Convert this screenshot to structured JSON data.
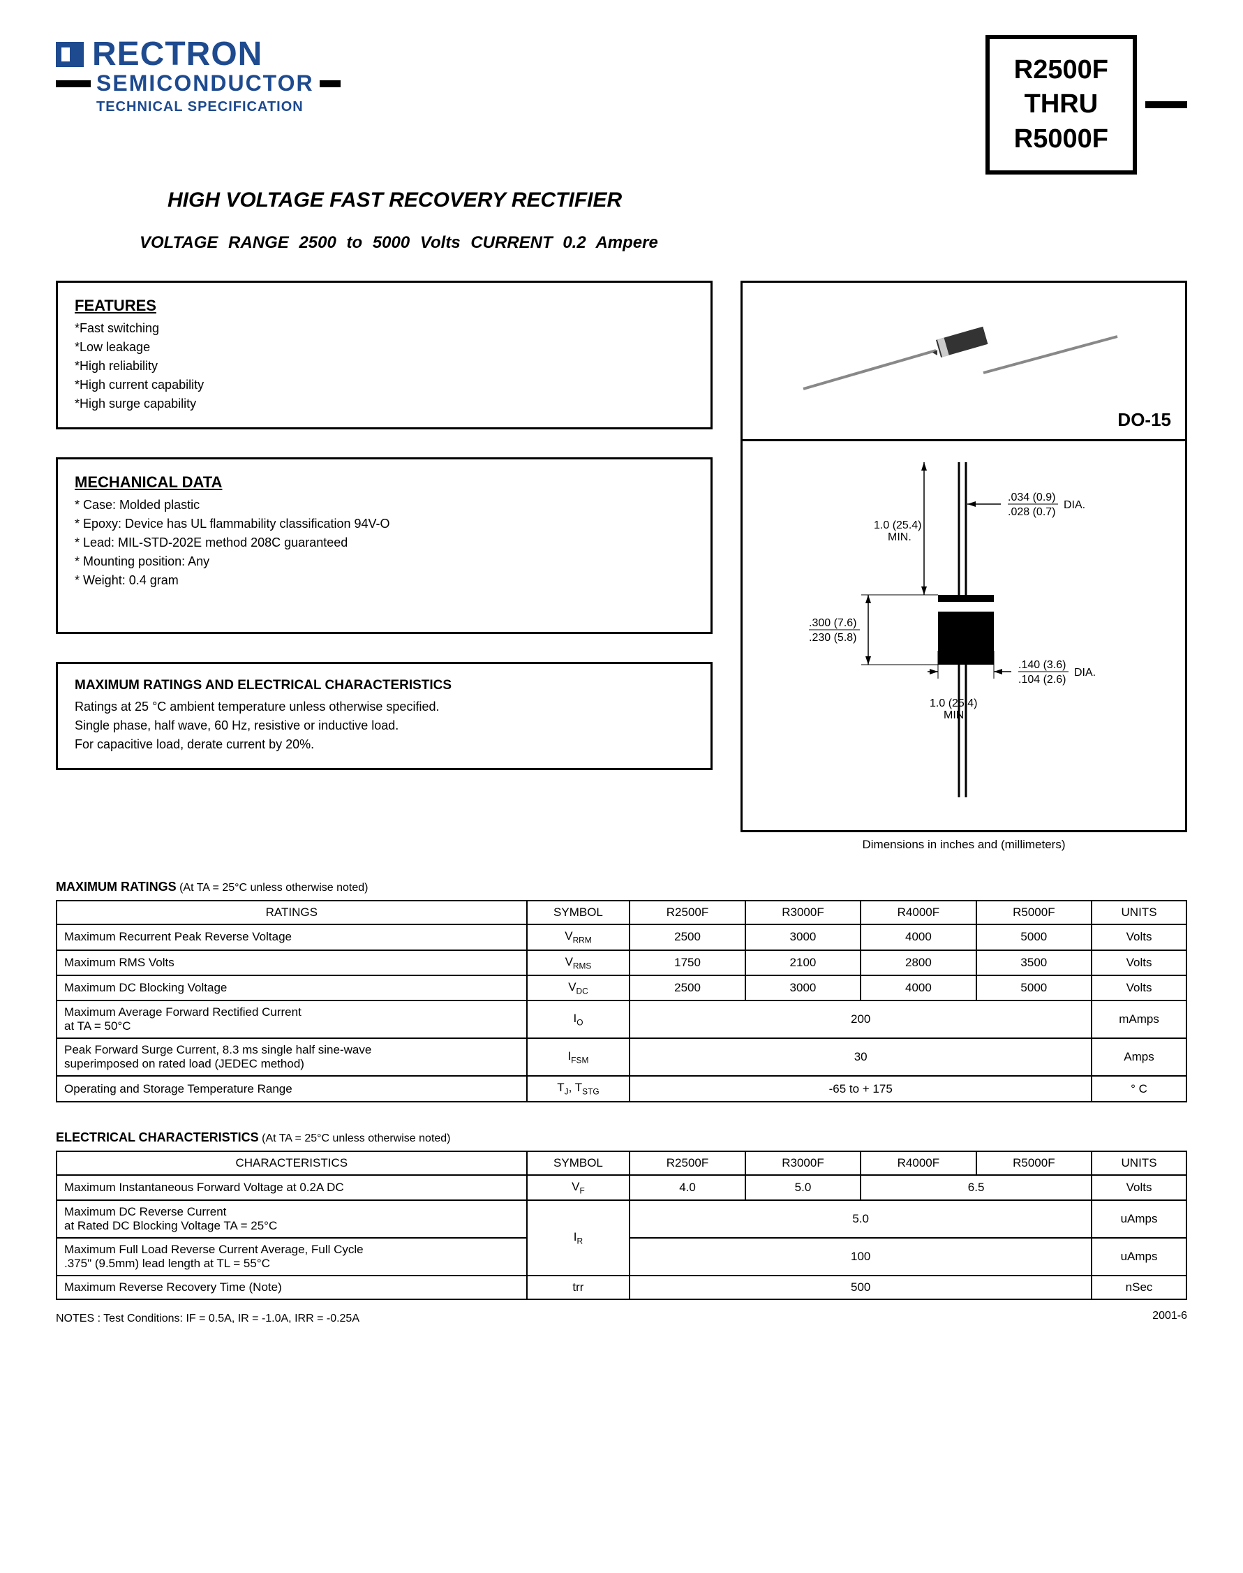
{
  "header": {
    "company": "RECTRON",
    "company_line2": "SEMICONDUCTOR",
    "company_line3": "TECHNICAL SPECIFICATION",
    "part_line1": "R2500F",
    "part_line2": "THRU",
    "part_line3": "R5000F",
    "brand_color": "#1e4a8f"
  },
  "titles": {
    "main": "HIGH VOLTAGE FAST RECOVERY RECTIFIER",
    "sub": "VOLTAGE RANGE  2500 to 5000 Volts    CURRENT 0.2 Ampere"
  },
  "features": {
    "heading": "FEATURES",
    "items": [
      "*Fast switching",
      "*Low leakage",
      "*High reliability",
      "*High current capability",
      "*High surge capability"
    ]
  },
  "mechanical": {
    "heading": "MECHANICAL DATA",
    "items": [
      "* Case: Molded plastic",
      "* Epoxy: Device has UL flammability classification 94V-O",
      "* Lead: MIL-STD-202E method 208C guaranteed",
      "* Mounting position: Any",
      "* Weight: 0.4 gram"
    ]
  },
  "ratings_intro": {
    "heading": "MAXIMUM RATINGS AND ELECTRICAL CHARACTERISTICS",
    "line1": "Ratings at 25 °C ambient temperature unless otherwise specified.",
    "line2": "Single phase, half wave, 60 Hz, resistive or inductive load.",
    "line3": "For capacitive load, derate current by 20%."
  },
  "package": {
    "label": "DO-15",
    "caption": "Dimensions in inches and (millimeters)",
    "dims": {
      "lead_dia": ".034 (0.9)\n.028 (0.7)",
      "lead_dia_label": "DIA.",
      "lead_len": "1.0 (25.4)\nMIN.",
      "body_len": ".300 (7.6)\n.230 (5.8)",
      "body_dia": ".140 (3.6)\n.104 (2.6)",
      "body_dia_label": "DIA."
    }
  },
  "max_ratings": {
    "title": "MAXIMUM RATINGS",
    "title_note": " (At TA = 25°C unless otherwise noted)",
    "columns": [
      "RATINGS",
      "SYMBOL",
      "R2500F",
      "R3000F",
      "R4000F",
      "R5000F",
      "UNITS"
    ],
    "rows": [
      {
        "rating": "Maximum Recurrent Peak Reverse Voltage",
        "symbol": "VRRM",
        "vals": [
          "2500",
          "3000",
          "4000",
          "5000"
        ],
        "units": "Volts",
        "span": false
      },
      {
        "rating": "Maximum RMS Volts",
        "symbol": "VRMS",
        "vals": [
          "1750",
          "2100",
          "2800",
          "3500"
        ],
        "units": "Volts",
        "span": false
      },
      {
        "rating": "Maximum DC Blocking Voltage",
        "symbol": "VDC",
        "vals": [
          "2500",
          "3000",
          "4000",
          "5000"
        ],
        "units": "Volts",
        "span": false
      },
      {
        "rating": "Maximum Average Forward Rectified Current\nat TA = 50°C",
        "symbol": "IO",
        "vals": [
          "200"
        ],
        "units": "mAmps",
        "span": true
      },
      {
        "rating": "Peak Forward Surge Current, 8.3 ms single half sine-wave\nsuperimposed on rated load (JEDEC method)",
        "symbol": "IFSM",
        "vals": [
          "30"
        ],
        "units": "Amps",
        "span": true
      },
      {
        "rating": "Operating and Storage Temperature Range",
        "symbol": "TJ, TSTG",
        "vals": [
          "-65 to + 175"
        ],
        "units": "° C",
        "span": true
      }
    ]
  },
  "elec_char": {
    "title": "ELECTRICAL CHARACTERISTICS",
    "title_note": " (At TA = 25°C unless otherwise noted)",
    "columns": [
      "CHARACTERISTICS",
      "SYMBOL",
      "R2500F",
      "R3000F",
      "R4000F",
      "R5000F",
      "UNITS"
    ],
    "rows": [
      {
        "char": "Maximum Instantaneous Forward Voltage at 0.2A DC",
        "symbol": "VF",
        "vals": [
          "4.0",
          "5.0",
          "6.5",
          ""
        ],
        "span_last2": true,
        "units": "Volts",
        "rowspan": 1
      },
      {
        "char": "Maximum DC Reverse Current\nat Rated DC Blocking Voltage TA = 25°C",
        "symbol": "IR",
        "vals": [
          "5.0"
        ],
        "span": true,
        "units": "uAmps",
        "rowspan": 2
      },
      {
        "char": "Maximum Full Load Reverse Current Average, Full Cycle\n.375\" (9.5mm) lead length at TL = 55°C",
        "symbol": "",
        "vals": [
          "100"
        ],
        "span": true,
        "units": "uAmps",
        "rowspan": 0
      },
      {
        "char": "Maximum Reverse Recovery Time (Note)",
        "symbol": "trr",
        "vals": [
          "500"
        ],
        "span": true,
        "units": "nSec",
        "rowspan": 1
      }
    ]
  },
  "footer": {
    "notes": "NOTES :   Test Conditions: IF = 0.5A, IR = -1.0A, IRR = -0.25A",
    "date": "2001-6"
  }
}
